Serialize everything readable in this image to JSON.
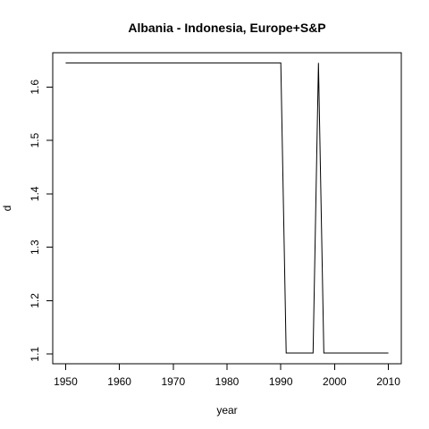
{
  "chart_data": {
    "type": "line",
    "title": "Albania - Indonesia, Europe+S&P",
    "xlabel": "year",
    "ylabel": "d",
    "xlim": [
      1947.6,
      2012.4
    ],
    "ylim": [
      1.082,
      1.664
    ],
    "x_ticks": [
      1950,
      1960,
      1970,
      1980,
      1990,
      2000,
      2010
    ],
    "y_ticks": [
      1.1,
      1.2,
      1.3,
      1.4,
      1.5,
      1.6
    ],
    "series": [
      {
        "color": "#000000",
        "points": [
          [
            1950,
            1.645
          ],
          [
            1990,
            1.645
          ],
          [
            1991,
            1.102
          ],
          [
            1996,
            1.102
          ],
          [
            1997,
            1.645
          ],
          [
            1998,
            1.102
          ],
          [
            2010,
            1.102
          ]
        ]
      }
    ],
    "grid": false,
    "legend": "none"
  }
}
